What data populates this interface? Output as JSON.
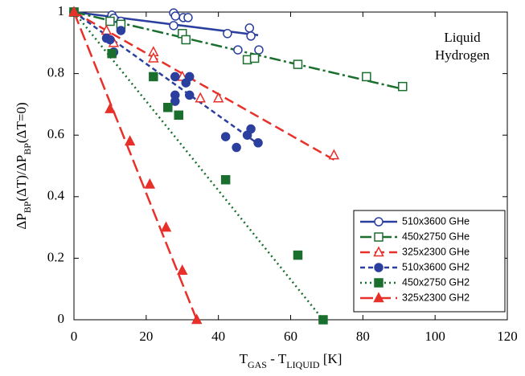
{
  "chart_data": {
    "type": "scatter",
    "xlabel": [
      {
        "text": "T"
      },
      {
        "text": "GAS",
        "sub": true
      },
      {
        "text": " - T"
      },
      {
        "text": "LIQUID",
        "sub": true
      },
      {
        "text": " [K]"
      }
    ],
    "ylabel": [
      {
        "text": "ΔP"
      },
      {
        "text": "BP",
        "sub": true
      },
      {
        "text": "(ΔT)/ΔP"
      },
      {
        "text": "BP",
        "sub": true
      },
      {
        "text": "(ΔT=0)"
      }
    ],
    "annotation": [
      "Liquid",
      "Hydrogen"
    ],
    "xlim": [
      0,
      120
    ],
    "xticks": [
      0,
      20,
      40,
      60,
      80,
      100,
      120
    ],
    "ylim": [
      0,
      1
    ],
    "yticks": [
      0,
      0.2,
      0.4,
      0.6,
      0.8,
      1
    ],
    "legend": "lower right",
    "series": [
      {
        "name": "510x3600 GHe",
        "color": "#2b3f9e",
        "marker": "circle",
        "filled": false,
        "dash": "none",
        "x": [
          0,
          10.5,
          11,
          13,
          27.6,
          28.1,
          27.6,
          30.3,
          31.6,
          42.5,
          45.4,
          48.6,
          49,
          51.2
        ],
        "values": [
          1,
          0.99,
          0.98,
          0.97,
          0.997,
          0.987,
          0.956,
          0.982,
          0.982,
          0.93,
          0.877,
          0.948,
          0.922,
          0.877
        ],
        "fit": {
          "x": [
            0,
            51
          ],
          "y": [
            1,
            0.925
          ]
        }
      },
      {
        "name": "450x2750 GHe",
        "color": "#1a6e2e",
        "marker": "square",
        "filled": false,
        "dash": "14,4,3,4",
        "x": [
          0,
          10,
          13,
          30,
          31,
          48,
          50,
          62,
          81,
          91
        ],
        "values": [
          1,
          0.97,
          0.96,
          0.93,
          0.91,
          0.845,
          0.85,
          0.83,
          0.79,
          0.758
        ],
        "fit": {
          "x": [
            0,
            91
          ],
          "y": [
            1,
            0.75
          ]
        }
      },
      {
        "name": "325x2300 GHe",
        "color": "#e8302a",
        "marker": "triangle",
        "filled": false,
        "dash": "12,6",
        "x": [
          0,
          9,
          11,
          22,
          22,
          30,
          35,
          40,
          72
        ],
        "values": [
          1,
          0.94,
          0.9,
          0.87,
          0.85,
          0.79,
          0.72,
          0.72,
          0.535
        ],
        "fit": {
          "x": [
            0,
            72
          ],
          "y": [
            1,
            0.52
          ]
        }
      },
      {
        "name": "510x3600 GH2",
        "color": "#2b3f9e",
        "marker": "circle",
        "filled": true,
        "dash": "6,4",
        "x": [
          0,
          9,
          10,
          11,
          13,
          28,
          28,
          28,
          31,
          32,
          32,
          42,
          45,
          48,
          49,
          51
        ],
        "values": [
          1,
          0.915,
          0.91,
          0.87,
          0.94,
          0.79,
          0.73,
          0.71,
          0.77,
          0.79,
          0.73,
          0.595,
          0.56,
          0.6,
          0.62,
          0.575
        ],
        "fit": {
          "x": [
            0,
            50
          ],
          "y": [
            1,
            0.58
          ]
        }
      },
      {
        "name": "450x2750 GH2",
        "color": "#1a6e2e",
        "marker": "square",
        "filled": true,
        "dash": "2,4",
        "x": [
          0,
          10.5,
          22,
          26,
          29,
          42,
          62,
          69
        ],
        "values": [
          1,
          0.865,
          0.79,
          0.69,
          0.665,
          0.455,
          0.21,
          0
        ],
        "fit": {
          "x": [
            0,
            69
          ],
          "y": [
            1,
            0
          ]
        }
      },
      {
        "name": "325x2300 GH2",
        "color": "#e8302a",
        "marker": "triangle",
        "filled": true,
        "dash": "16,6",
        "x": [
          0,
          10,
          15.5,
          21,
          25.5,
          30,
          34
        ],
        "values": [
          1,
          0.685,
          0.58,
          0.44,
          0.3,
          0.16,
          0
        ],
        "fit": {
          "x": [
            0,
            34
          ],
          "y": [
            1,
            0
          ]
        }
      }
    ]
  }
}
